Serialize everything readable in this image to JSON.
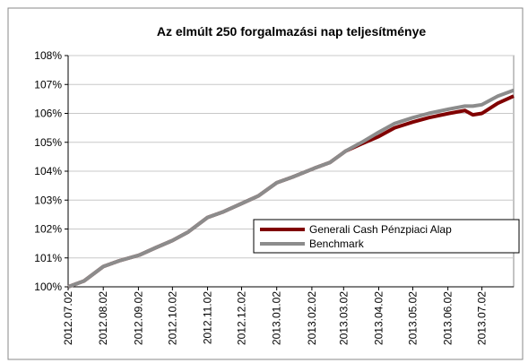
{
  "chart_data": {
    "type": "line",
    "title": "Az elmúlt 250 forgalmazási nap teljesítménye",
    "x": [
      "2012.07.02",
      "2012.07.16",
      "2012.08.02",
      "2012.08.16",
      "2012.09.03",
      "2012.09.17",
      "2012.10.02",
      "2012.10.16",
      "2012.11.02",
      "2012.11.16",
      "2012.12.03",
      "2012.12.17",
      "2013.01.02",
      "2013.01.16",
      "2013.02.04",
      "2013.02.18",
      "2013.03.04",
      "2013.03.18",
      "2013.04.02",
      "2013.04.16",
      "2013.05.02",
      "2013.05.16",
      "2013.06.03",
      "2013.06.17",
      "2013.06.24",
      "2013.07.02",
      "2013.07.16",
      "2013.07.30"
    ],
    "series": [
      {
        "name": "Generali Cash Pénzpiaci Alap",
        "color": "#800000",
        "values": [
          100.0,
          100.2,
          100.7,
          100.9,
          101.1,
          101.35,
          101.6,
          101.9,
          102.4,
          102.6,
          102.9,
          103.15,
          103.6,
          103.8,
          104.1,
          104.3,
          104.7,
          104.95,
          105.2,
          105.5,
          105.7,
          105.85,
          106.0,
          106.1,
          105.95,
          106.0,
          106.35,
          106.6
        ]
      },
      {
        "name": "Benchmark",
        "color": "#8c8c8c",
        "values": [
          100.0,
          100.2,
          100.7,
          100.9,
          101.1,
          101.35,
          101.6,
          101.9,
          102.4,
          102.6,
          102.9,
          103.15,
          103.6,
          103.8,
          104.1,
          104.3,
          104.7,
          105.0,
          105.35,
          105.65,
          105.85,
          106.0,
          106.15,
          106.25,
          106.25,
          106.3,
          106.6,
          106.8
        ]
      }
    ],
    "xlim": [
      "2012.07.02",
      "2013.07.30"
    ],
    "xticks": [
      "2012.07.02",
      "2012.08.02",
      "2012.09.02",
      "2012.10.02",
      "2012.11.02",
      "2012.12.02",
      "2013.01.02",
      "2013.02.02",
      "2013.03.02",
      "2013.04.02",
      "2013.05.02",
      "2013.06.02",
      "2013.07.02"
    ],
    "ylim": [
      100,
      108
    ],
    "yticks": [
      {
        "value": 100,
        "label": "100%"
      },
      {
        "value": 101,
        "label": "101%"
      },
      {
        "value": 102,
        "label": "102%"
      },
      {
        "value": 103,
        "label": "103%"
      },
      {
        "value": 104,
        "label": "104%"
      },
      {
        "value": 105,
        "label": "105%"
      },
      {
        "value": 106,
        "label": "106%"
      },
      {
        "value": 107,
        "label": "107%"
      },
      {
        "value": 108,
        "label": "108%"
      }
    ],
    "grid": true,
    "legend": "right"
  }
}
